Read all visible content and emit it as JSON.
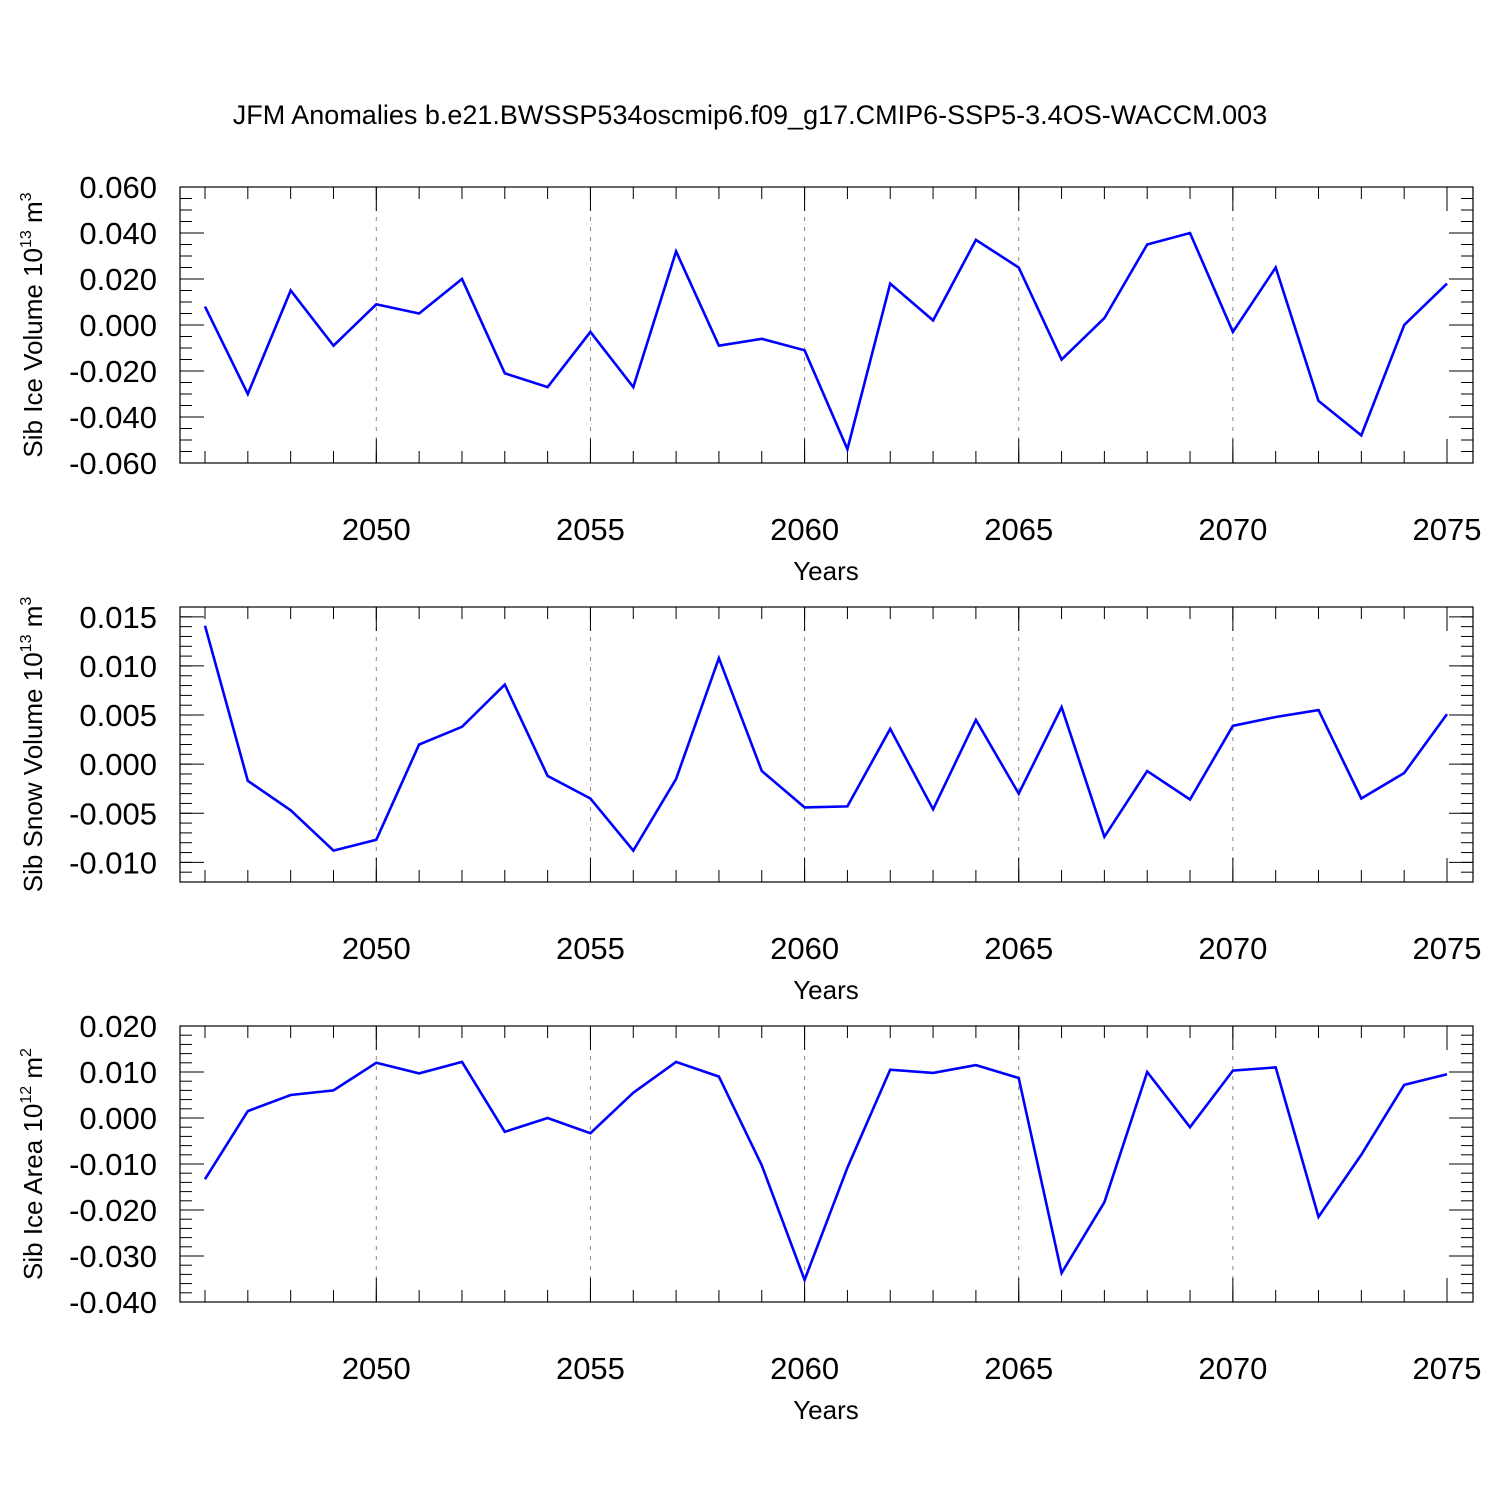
{
  "title": "JFM Anomalies b.e21.BWSSP534oscmip6.f09_g17.CMIP6-SSP5-3.4OS-WACCM.003",
  "series_color": "#0000ff",
  "chart_data": [
    {
      "type": "line",
      "id": "ice-volume",
      "ylabel_main": "Sib Ice Volume 10",
      "ylabel_sup": "13",
      "ylabel_unit": " m",
      "ylabel_unit_sup": "3",
      "xlabel": "Years",
      "xlim": [
        2046,
        2075
      ],
      "ylim": [
        -0.06,
        0.06
      ],
      "ymajor": [
        -0.06,
        -0.04,
        -0.02,
        0.0,
        0.02,
        0.04,
        0.06
      ],
      "ymajor_labels": [
        "-0.060",
        "-0.040",
        "-0.020",
        "0.000",
        "0.020",
        "0.040",
        "0.060"
      ],
      "yminor_step": 0.005,
      "xticks": [
        2050,
        2055,
        2060,
        2065,
        2070,
        2075
      ],
      "xtick_labels": [
        "2050",
        "2055",
        "2060",
        "2065",
        "2070",
        "2075"
      ],
      "x": [
        2046,
        2047,
        2048,
        2049,
        2050,
        2051,
        2052,
        2053,
        2054,
        2055,
        2056,
        2057,
        2058,
        2059,
        2060,
        2061,
        2062,
        2063,
        2064,
        2065,
        2066,
        2067,
        2068,
        2069,
        2070,
        2071,
        2072,
        2073,
        2074,
        2075
      ],
      "values": [
        0.008,
        -0.03,
        0.015,
        -0.009,
        0.009,
        0.005,
        0.02,
        -0.021,
        -0.027,
        -0.003,
        -0.027,
        0.032,
        -0.009,
        -0.006,
        -0.011,
        -0.054,
        0.018,
        0.002,
        0.037,
        0.025,
        -0.015,
        0.003,
        0.035,
        0.04,
        -0.003,
        0.025,
        -0.033,
        -0.048,
        0.0,
        0.018
      ]
    },
    {
      "type": "line",
      "id": "snow-volume",
      "ylabel_main": "Sib Snow Volume 10",
      "ylabel_sup": "13",
      "ylabel_unit": " m",
      "ylabel_unit_sup": "3",
      "xlabel": "Years",
      "xlim": [
        2046,
        2075
      ],
      "ylim": [
        -0.012,
        0.016
      ],
      "ymajor": [
        -0.01,
        -0.005,
        0.0,
        0.005,
        0.01,
        0.015
      ],
      "ymajor_labels": [
        "-0.010",
        "-0.005",
        "0.000",
        "0.005",
        "0.010",
        "0.015"
      ],
      "yminor_step": 0.001,
      "xticks": [
        2050,
        2055,
        2060,
        2065,
        2070,
        2075
      ],
      "xtick_labels": [
        "2050",
        "2055",
        "2060",
        "2065",
        "2070",
        "2075"
      ],
      "x": [
        2046,
        2047,
        2048,
        2049,
        2050,
        2051,
        2052,
        2053,
        2054,
        2055,
        2056,
        2057,
        2058,
        2059,
        2060,
        2061,
        2062,
        2063,
        2064,
        2065,
        2066,
        2067,
        2068,
        2069,
        2070,
        2071,
        2072,
        2073,
        2074,
        2075
      ],
      "values": [
        0.0141,
        -0.0017,
        -0.0047,
        -0.0088,
        -0.0077,
        0.002,
        0.0038,
        0.0081,
        -0.0012,
        -0.0035,
        -0.0088,
        -0.0015,
        0.0108,
        -0.0007,
        -0.0044,
        -0.0043,
        0.0036,
        -0.0046,
        0.0045,
        -0.003,
        0.0058,
        -0.0074,
        -0.0007,
        -0.0036,
        0.0039,
        0.0048,
        0.0055,
        -0.0035,
        -0.0009,
        0.0051
      ]
    },
    {
      "type": "line",
      "id": "ice-area",
      "ylabel_main": "Sib Ice Area 10",
      "ylabel_sup": "12",
      "ylabel_unit": " m",
      "ylabel_unit_sup": "2",
      "xlabel": "Years",
      "xlim": [
        2046,
        2075
      ],
      "ylim": [
        -0.04,
        0.02
      ],
      "ymajor": [
        -0.04,
        -0.03,
        -0.02,
        -0.01,
        0.0,
        0.01,
        0.02
      ],
      "ymajor_labels": [
        "-0.040",
        "-0.030",
        "-0.020",
        "-0.010",
        "0.000",
        "0.010",
        "0.020"
      ],
      "yminor_step": 0.002,
      "xticks": [
        2050,
        2055,
        2060,
        2065,
        2070,
        2075
      ],
      "xtick_labels": [
        "2050",
        "2055",
        "2060",
        "2065",
        "2070",
        "2075"
      ],
      "x": [
        2046,
        2047,
        2048,
        2049,
        2050,
        2051,
        2052,
        2053,
        2054,
        2055,
        2056,
        2057,
        2058,
        2059,
        2060,
        2061,
        2062,
        2063,
        2064,
        2065,
        2066,
        2067,
        2068,
        2069,
        2070,
        2071,
        2072,
        2073,
        2074,
        2075
      ],
      "values": [
        -0.0133,
        0.0015,
        0.005,
        0.006,
        0.012,
        0.0097,
        0.0122,
        -0.003,
        0.0,
        -0.0033,
        0.0055,
        0.0122,
        0.009,
        -0.0103,
        -0.0352,
        -0.0108,
        0.0105,
        0.0098,
        0.0115,
        0.0087,
        -0.0337,
        -0.0183,
        0.01,
        -0.002,
        0.0103,
        0.011,
        -0.0215,
        -0.008,
        0.0072,
        0.0095
      ]
    }
  ]
}
